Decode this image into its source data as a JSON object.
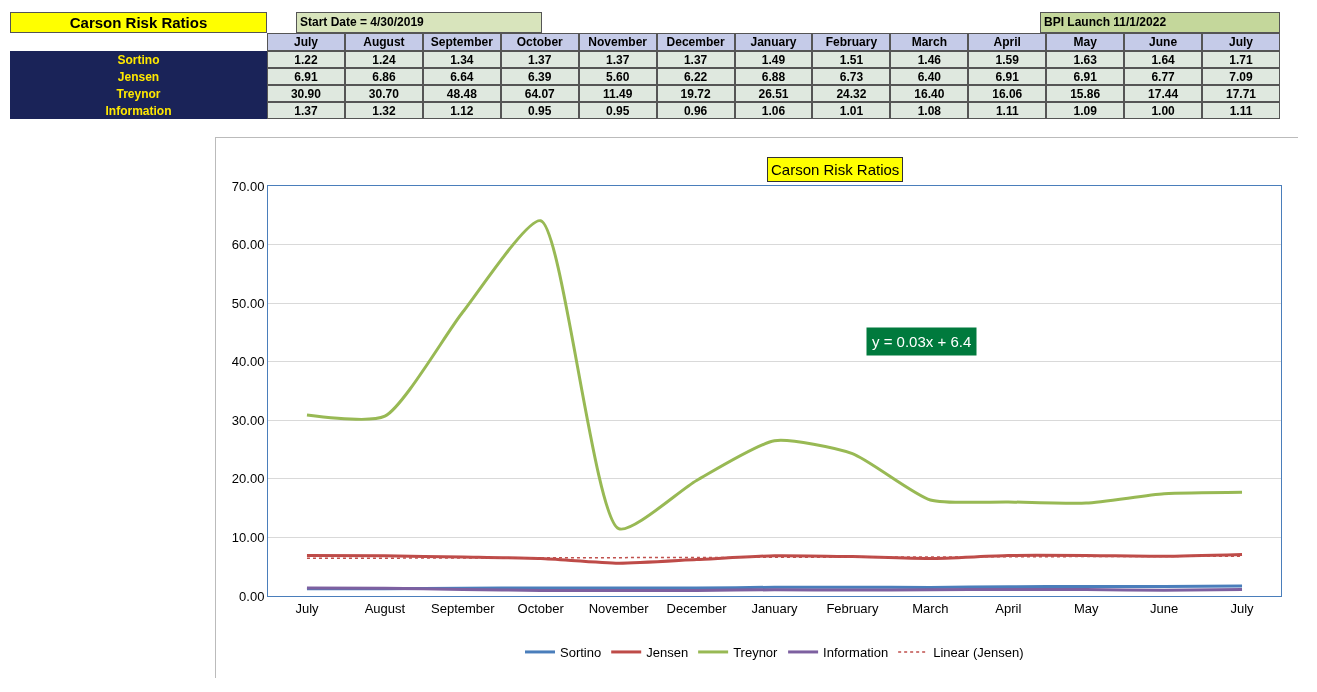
{
  "chart_data": {
    "type": "line",
    "title": "Carson Risk Ratios",
    "categories": [
      "July",
      "August",
      "September",
      "October",
      "November",
      "December",
      "January",
      "February",
      "March",
      "April",
      "May",
      "June",
      "July"
    ],
    "series": [
      {
        "name": "Sortino",
        "color": "#4a7ebb",
        "values": [
          1.22,
          1.24,
          1.34,
          1.37,
          1.37,
          1.37,
          1.49,
          1.51,
          1.46,
          1.59,
          1.63,
          1.64,
          1.71
        ],
        "value_labels": [
          "1.22",
          "1.24",
          "1.34",
          "1.37",
          "1.37",
          "1.37",
          "1.49",
          "1.51",
          "1.46",
          "1.59",
          "1.63",
          "1.64",
          "1.71"
        ]
      },
      {
        "name": "Jensen",
        "color": "#be4b48",
        "values": [
          6.91,
          6.86,
          6.64,
          6.39,
          5.6,
          6.22,
          6.88,
          6.73,
          6.4,
          6.91,
          6.91,
          6.77,
          7.09
        ],
        "value_labels": [
          "6.91",
          "6.86",
          "6.64",
          "6.39",
          "5.60",
          "6.22",
          "6.88",
          "6.73",
          "6.40",
          "6.91",
          "6.91",
          "6.77",
          "7.09"
        ]
      },
      {
        "name": "Treynor",
        "color": "#98b954",
        "values": [
          30.9,
          30.7,
          48.48,
          64.07,
          11.49,
          19.72,
          26.51,
          24.32,
          16.4,
          16.06,
          15.86,
          17.44,
          17.71
        ],
        "value_labels": [
          "30.90",
          "30.70",
          "48.48",
          "64.07",
          "11.49",
          "19.72",
          "26.51",
          "24.32",
          "16.40",
          "16.06",
          "15.86",
          "17.44",
          "17.71"
        ]
      },
      {
        "name": "Information",
        "color": "#7d60a0",
        "values": [
          1.37,
          1.32,
          1.12,
          0.95,
          0.95,
          0.96,
          1.06,
          1.01,
          1.08,
          1.11,
          1.09,
          1.0,
          1.11
        ],
        "value_labels": [
          "1.37",
          "1.32",
          "1.12",
          "0.95",
          "0.95",
          "0.96",
          "1.06",
          "1.01",
          "1.08",
          "1.11",
          "1.09",
          "1.00",
          "1.11"
        ]
      },
      {
        "name": "Linear (Jensen)",
        "type": "line",
        "line_style": "dotted",
        "color": "#c0504d",
        "values": [
          6.43,
          6.46,
          6.49,
          6.52,
          6.55,
          6.58,
          6.61,
          6.64,
          6.67,
          6.7,
          6.73,
          6.76,
          6.79
        ]
      }
    ],
    "ylim": [
      0,
      70
    ],
    "yticks": [
      {
        "value": 0,
        "label": "0.00"
      },
      {
        "value": 10,
        "label": "10.00"
      },
      {
        "value": 20,
        "label": "20.00"
      },
      {
        "value": 30,
        "label": "30.00"
      },
      {
        "value": 40,
        "label": "40.00"
      },
      {
        "value": 50,
        "label": "50.00"
      },
      {
        "value": 60,
        "label": "60.00"
      },
      {
        "value": 70,
        "label": "70.00"
      }
    ],
    "grid": "y",
    "legend": "bottom",
    "line_style": "solid",
    "marker": "none",
    "annotations": [
      "Start Date = 4/30/2019",
      "BPI Launch 11/1/2022",
      "y = 0.03x + 6.4"
    ]
  }
}
